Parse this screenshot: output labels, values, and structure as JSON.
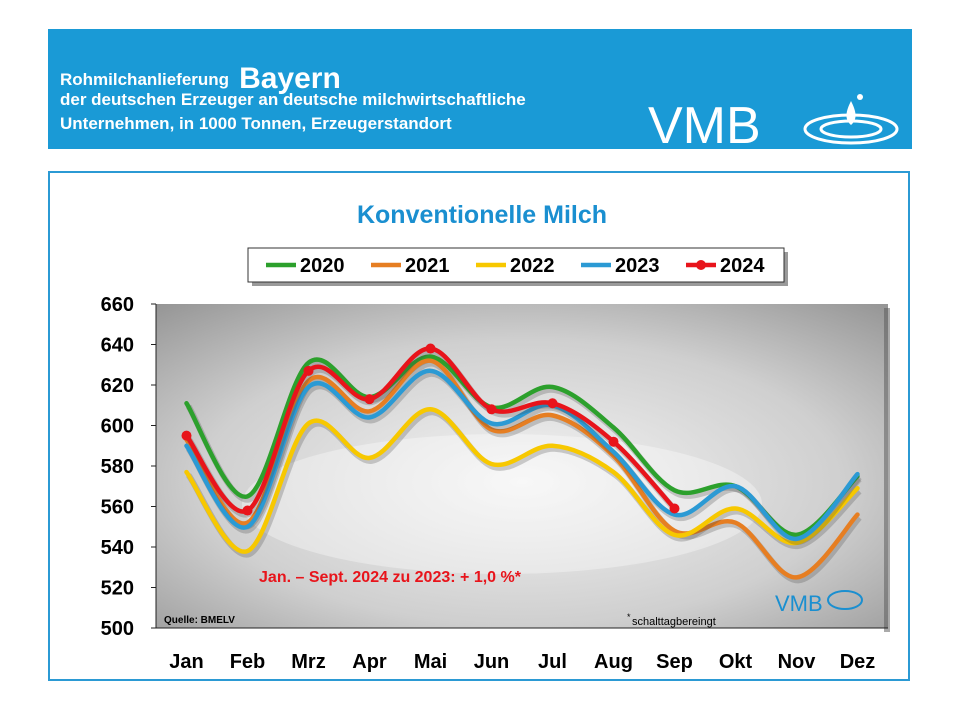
{
  "header": {
    "line1_prefix": "Rohmilchanlieferung",
    "line1_region": "Bayern",
    "line2": "der deutschen Erzeuger an deutsche milchwirtschaftliche",
    "line3": "Unternehmen, in 1000 Tonnen, Erzeugerstandort",
    "logo_text": "VMB"
  },
  "colors": {
    "banner": "#1a9ad6",
    "frame": "#2b9ad4",
    "title": "#1a8fd0",
    "annotation": "#e8141b"
  },
  "chart_data": {
    "type": "line",
    "title": "Konventionelle Milch",
    "categories": [
      "Jan",
      "Feb",
      "Mrz",
      "Apr",
      "Mai",
      "Jun",
      "Jul",
      "Aug",
      "Sep",
      "Okt",
      "Nov",
      "Dez"
    ],
    "ylim": [
      500,
      660
    ],
    "yticks": [
      500,
      520,
      540,
      560,
      580,
      600,
      620,
      640,
      660
    ],
    "legend_position": "top",
    "series": [
      {
        "name": "2020",
        "color": "#2ca02c",
        "values": [
          611,
          565,
          631,
          614,
          634,
          609,
          619,
          599,
          568,
          570,
          546,
          575
        ]
      },
      {
        "name": "2021",
        "color": "#e67e22",
        "values": [
          593,
          552,
          622,
          607,
          632,
          598,
          605,
          585,
          548,
          552,
          525,
          556
        ]
      },
      {
        "name": "2022",
        "color": "#f7c800",
        "values": [
          577,
          538,
          601,
          584,
          608,
          581,
          590,
          577,
          546,
          559,
          542,
          569
        ]
      },
      {
        "name": "2023",
        "color": "#2b9ad4",
        "values": [
          590,
          550,
          619,
          604,
          627,
          601,
          610,
          587,
          556,
          570,
          544,
          576
        ]
      },
      {
        "name": "2024",
        "color": "#e8141b",
        "marker": true,
        "values": [
          595,
          558,
          627,
          613,
          638,
          608,
          611,
          592,
          559,
          null,
          null,
          null
        ]
      }
    ],
    "annotation": "Jan. – Sept. 2024 zu 2023: + 1,0 %*",
    "source": "Quelle:  BMELV",
    "footnote_mark": "*",
    "footnote": "schalttagbereingt",
    "watermark_logo": "VMB"
  }
}
